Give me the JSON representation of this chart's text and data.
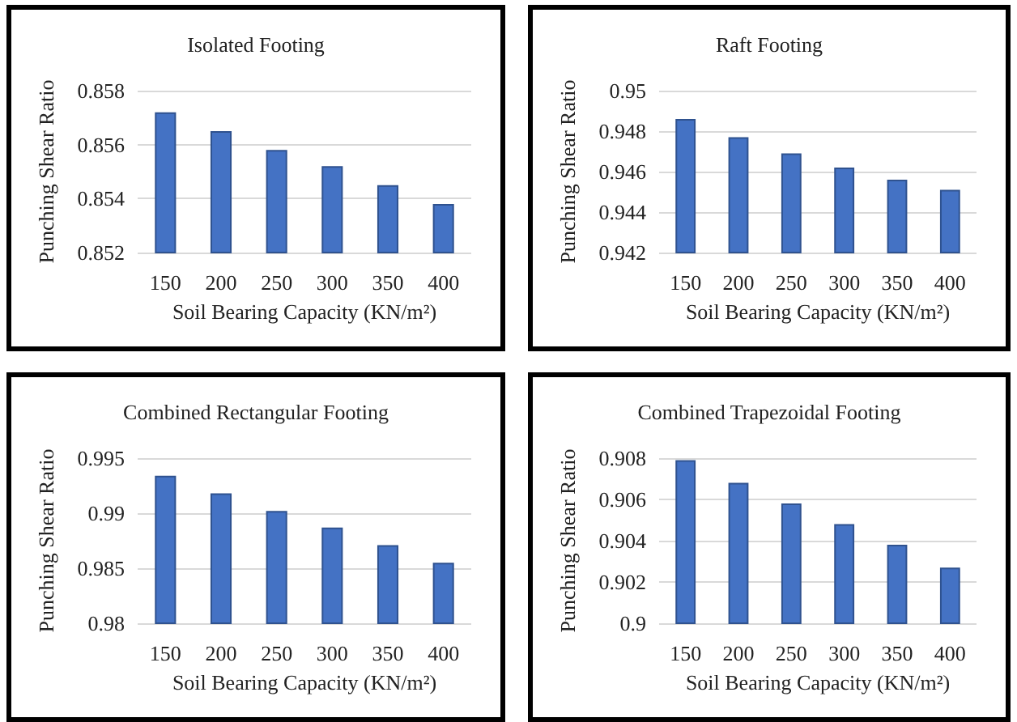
{
  "chart_data": [
    {
      "type": "bar",
      "title": "Isolated Footing",
      "xlabel": "Soil Bearing Capacity (KN/m²)",
      "ylabel": "Punching Shear Ratio",
      "categories": [
        "150",
        "200",
        "250",
        "300",
        "350",
        "400"
      ],
      "values": [
        0.8572,
        0.8565,
        0.8558,
        0.8552,
        0.8545,
        0.8538
      ],
      "color": "#4472c4",
      "ylim": [
        0.852,
        0.858
      ],
      "yticks": [
        0.852,
        0.854,
        0.856,
        0.858
      ],
      "grid": "y"
    },
    {
      "type": "bar",
      "title": "Raft Footing",
      "xlabel": "Soil Bearing Capacity (KN/m²)",
      "ylabel": "Punching Shear Ratio",
      "categories": [
        "150",
        "200",
        "250",
        "300",
        "350",
        "400"
      ],
      "values": [
        0.9486,
        0.9477,
        0.9469,
        0.9462,
        0.9456,
        0.9451
      ],
      "color": "#4472c4",
      "ylim": [
        0.942,
        0.95
      ],
      "yticks": [
        0.942,
        0.944,
        0.946,
        0.948,
        0.95
      ],
      "grid": "y"
    },
    {
      "type": "bar",
      "title": "Combined Rectangular Footing",
      "xlabel": "Soil Bearing Capacity (KN/m²)",
      "ylabel": "Punching Shear Ratio",
      "categories": [
        "150",
        "200",
        "250",
        "300",
        "350",
        "400"
      ],
      "values": [
        0.9934,
        0.9918,
        0.9902,
        0.9887,
        0.9871,
        0.9855
      ],
      "color": "#4472c4",
      "ylim": [
        0.98,
        0.995
      ],
      "yticks": [
        0.98,
        0.985,
        0.99,
        0.995
      ],
      "grid": "y"
    },
    {
      "type": "bar",
      "title": "Combined Trapezoidal Footing",
      "xlabel": "Soil Bearing Capacity (KN/m²)",
      "ylabel": "Punching Shear Ratio",
      "categories": [
        "150",
        "200",
        "250",
        "300",
        "350",
        "400"
      ],
      "values": [
        0.9079,
        0.9068,
        0.9058,
        0.9048,
        0.9038,
        0.9027
      ],
      "color": "#4472c4",
      "ylim": [
        0.9,
        0.908
      ],
      "yticks": [
        0.9,
        0.902,
        0.904,
        0.906,
        0.908
      ],
      "grid": "y"
    }
  ]
}
